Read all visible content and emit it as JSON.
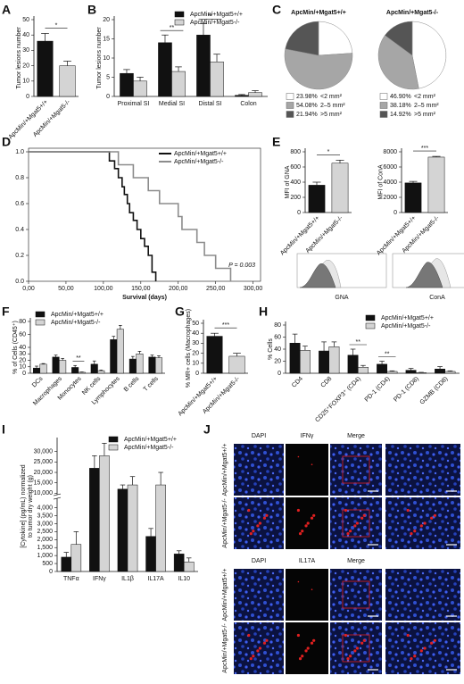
{
  "chart_data": [
    {
      "type": "bar",
      "panel": "A",
      "ylabel": "Tumor lesions number",
      "categories": [
        "ApcMin/+Mgat5+/+",
        "ApcMin/+Mgat5-/-"
      ],
      "values": [
        36,
        20
      ],
      "errors": [
        5,
        3
      ],
      "colors": [
        "#111111",
        "#d4d4d4"
      ],
      "ylim": [
        0,
        50
      ],
      "yticks": [
        0,
        10,
        20,
        30,
        40,
        50
      ],
      "significance": "*"
    },
    {
      "type": "bar",
      "panel": "B",
      "ylabel": "Tumor lesions number",
      "categories": [
        "Proximal SI",
        "Medial SI",
        "Distal SI",
        "Colon"
      ],
      "series": [
        {
          "name": "ApcMin/+Mgat5+/+",
          "color": "#111111",
          "values": [
            6,
            14,
            16,
            0.3
          ],
          "errors": [
            1,
            2,
            3,
            0.2
          ]
        },
        {
          "name": "ApcMin/+Mgat5-/-",
          "color": "#d4d4d4",
          "values": [
            4,
            6.5,
            9,
            1
          ],
          "errors": [
            1,
            1.2,
            2,
            0.5
          ]
        }
      ],
      "ylim": [
        0,
        20
      ],
      "yticks": [
        0,
        5,
        10,
        15,
        20
      ],
      "significance": [
        null,
        "**",
        "**",
        null
      ]
    },
    {
      "type": "pie",
      "panel": "C",
      "title": "ApcMin/+Mgat5+/+",
      "categories": [
        "<2 mm²",
        "2–5 mm²",
        ">5 mm²"
      ],
      "values": [
        23.98,
        54.08,
        21.94
      ],
      "value_labels": [
        "23.98%",
        "54.08%",
        "21.94%"
      ],
      "colors": [
        "#ffffff",
        "#a6a6a6",
        "#555555"
      ]
    },
    {
      "type": "pie",
      "title": "ApcMin/+Mgat5-/-",
      "categories": [
        "<2 mm²",
        "2–5 mm²",
        ">5 mm²"
      ],
      "values": [
        46.9,
        38.18,
        14.92
      ],
      "value_labels": [
        "46.90%",
        "38.18%",
        "14.92%"
      ],
      "colors": [
        "#ffffff",
        "#a6a6a6",
        "#555555"
      ]
    },
    {
      "type": "line",
      "panel": "D",
      "xlabel": "Survival (days)",
      "annotation": "P = 0.003",
      "series": [
        {
          "name": "ApcMin/+Mgat5+/+",
          "color": "#111111",
          "x": [
            0,
            100,
            108,
            115,
            120,
            125,
            128,
            132,
            135,
            140,
            145,
            150,
            155,
            160,
            165,
            170
          ],
          "values": [
            1,
            1,
            0.93,
            0.87,
            0.8,
            0.73,
            0.67,
            0.6,
            0.53,
            0.47,
            0.4,
            0.33,
            0.27,
            0.2,
            0.07,
            0
          ]
        },
        {
          "name": "ApcMin/+Mgat5-/-",
          "color": "#8c8c8c",
          "x": [
            0,
            105,
            120,
            140,
            160,
            175,
            200,
            205,
            225,
            235,
            250,
            270
          ],
          "values": [
            1,
            1,
            0.9,
            0.8,
            0.7,
            0.6,
            0.5,
            0.4,
            0.3,
            0.2,
            0.1,
            0
          ]
        }
      ],
      "xlim": [
        0,
        310
      ],
      "xticks": [
        {
          "value": 0,
          "label": "0,00"
        },
        {
          "value": 50,
          "label": "50,00"
        },
        {
          "value": 100,
          "label": "100,00"
        },
        {
          "value": 150,
          "label": "150,00"
        },
        {
          "value": 200,
          "label": "200,00"
        },
        {
          "value": 250,
          "label": "250,00"
        },
        {
          "value": 300,
          "label": "300,00"
        }
      ],
      "ylim": [
        0,
        1
      ],
      "yticks": [
        {
          "value": 0,
          "label": "0.0"
        },
        0.2,
        0.4,
        0.6,
        0.8,
        {
          "value": 1,
          "label": "1.0"
        }
      ]
    },
    {
      "type": "bar",
      "panel": "E",
      "ylabel": "MFI of GNA",
      "histogram_label": "GNA",
      "categories": [
        "ApcMin/+Mgat5+/+",
        "ApcMin/+Mgat5-/-"
      ],
      "values": [
        360,
        650
      ],
      "errors": [
        40,
        40
      ],
      "colors": [
        "#111111",
        "#d4d4d4"
      ],
      "ylim": [
        0,
        800
      ],
      "yticks": [
        0,
        200,
        400,
        600,
        800
      ],
      "significance": "*"
    },
    {
      "type": "bar",
      "ylabel": "MFI of ConA",
      "histogram_label": "ConA",
      "categories": [
        "ApcMin/+Mgat5+/+",
        "ApcMin/+Mgat5-/-"
      ],
      "values": [
        3900,
        7300
      ],
      "errors": [
        200,
        100
      ],
      "colors": [
        "#111111",
        "#d4d4d4"
      ],
      "ylim": [
        0,
        8000
      ],
      "yticks": [
        0,
        2000,
        4000,
        6000,
        8000
      ],
      "significance": "***"
    },
    {
      "type": "bar",
      "panel": "F",
      "ylabel": "% of Cells (CD45⁺)",
      "categories": [
        "DCs",
        "Macrophages",
        "Monocytes",
        "NK cells",
        "Lymphocytes",
        "B cells",
        "T cells"
      ],
      "series": [
        {
          "name": "ApcMin/+Mgat5+/+",
          "color": "#111111",
          "values": [
            8,
            25,
            9,
            14,
            52,
            22,
            25
          ],
          "errors": [
            3,
            3,
            3,
            5,
            5,
            4,
            3
          ]
        },
        {
          "name": "ApcMin/+Mgat5-/-",
          "color": "#d4d4d4",
          "values": [
            14,
            20,
            1.5,
            4,
            68,
            30,
            24
          ],
          "errors": [
            1,
            3,
            0.5,
            1,
            6,
            4,
            3
          ]
        }
      ],
      "ylim": [
        0,
        80
      ],
      "yticks": [
        0,
        10,
        20,
        30,
        40,
        60,
        80
      ],
      "significance": [
        null,
        null,
        "**",
        null,
        null,
        null,
        null
      ]
    },
    {
      "type": "bar",
      "panel": "G",
      "ylabel": "% MR+ cells (Macrophages)",
      "categories": [
        "ApcMin/+Mgat5+/+",
        "ApcMin/+Mgat5-/-"
      ],
      "values": [
        37,
        17
      ],
      "errors": [
        3,
        3
      ],
      "colors": [
        "#111111",
        "#d4d4d4"
      ],
      "ylim": [
        0,
        50
      ],
      "yticks": [
        0,
        10,
        20,
        30,
        40,
        50
      ],
      "significance": "***"
    },
    {
      "type": "bar",
      "panel": "H",
      "ylabel": "% Cells",
      "categories": [
        "CD4",
        "CD8",
        "CD25⁺FOXP3⁺ (CD4)",
        "PD-1 (CD4)",
        "PD-1 (CD8)",
        "GZMB (CD8)"
      ],
      "series": [
        {
          "name": "ApcMin/+Mgat5+/+",
          "color": "#111111",
          "values": [
            50,
            37,
            30,
            15,
            5,
            7
          ],
          "errors": [
            15,
            15,
            10,
            5,
            3,
            4
          ]
        },
        {
          "name": "ApcMin/+Mgat5-/-",
          "color": "#d4d4d4",
          "values": [
            38,
            44,
            10,
            3,
            1,
            3
          ],
          "errors": [
            7,
            8,
            3,
            1,
            0.5,
            1
          ]
        }
      ],
      "ylim": [
        0,
        80
      ],
      "yticks": [
        0,
        20,
        40,
        60,
        80
      ],
      "significance": [
        null,
        null,
        "**",
        "**",
        null,
        null
      ]
    },
    {
      "type": "bar",
      "panel": "I",
      "ylabel": [
        "[Cytokine] (pg/mL) normalized",
        "to tumor dry weight (g)"
      ],
      "categories": [
        "TNFα",
        "IFNγ",
        "IL1β",
        "IL17A",
        "IL10"
      ],
      "series": [
        {
          "name": "ApcMin/+Mgat5+/+",
          "color": "#111111",
          "values": [
            900,
            22000,
            12000,
            2200,
            1100
          ],
          "errors": [
            300,
            6000,
            2000,
            500,
            200
          ]
        },
        {
          "name": "ApcMin/+Mgat5-/-",
          "color": "#d4d4d4",
          "values": [
            1700,
            28000,
            14000,
            14000,
            600
          ],
          "errors": [
            800,
            6000,
            4000,
            6000,
            250
          ]
        }
      ],
      "ylim": [
        0,
        35000
      ],
      "ybreak": [
        4500,
        10000
      ],
      "yticks": [
        0,
        500,
        {
          "value": 1000,
          "label": "1,000"
        },
        {
          "value": 1500,
          "label": "1,500"
        },
        {
          "value": 2000,
          "label": "2,000"
        },
        {
          "value": 2500,
          "label": "2,500"
        },
        {
          "value": 3000,
          "label": "3,000"
        },
        {
          "value": 3500,
          "label": "3,500"
        },
        {
          "value": 4000,
          "label": "4,000"
        },
        {
          "value": 10000,
          "label": "10,000"
        },
        {
          "value": 15000,
          "label": "15,000"
        },
        {
          "value": 20000,
          "label": "20,000"
        },
        {
          "value": 25000,
          "label": "25,000"
        },
        {
          "value": 30000,
          "label": "30,000"
        }
      ],
      "significance": [
        null,
        null,
        null,
        null,
        null
      ]
    }
  ],
  "panel_j": {
    "panel": "J",
    "blocks": [
      {
        "columns": [
          "DAPI",
          "IFNγ",
          "Merge"
        ],
        "rows": [
          "ApcMin/+Mgat5+/+",
          "ApcMin/+Mgat5-/-"
        ]
      },
      {
        "columns": [
          "DAPI",
          "IL17A",
          "Merge"
        ],
        "rows": [
          "ApcMin/+Mgat5+/+",
          "ApcMin/+Mgat5-/-"
        ]
      }
    ]
  }
}
